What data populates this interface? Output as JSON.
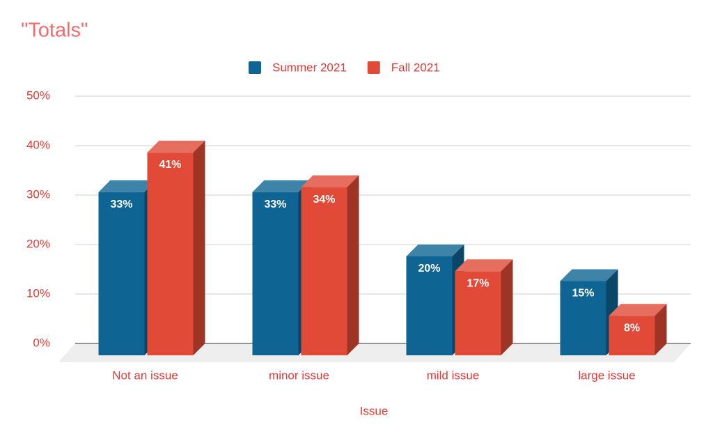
{
  "chart_data": {
    "type": "bar3d",
    "title": "\"Totals\"",
    "x_label": "Issue",
    "categories": [
      "Not an issue",
      "minor issue",
      "mild issue",
      "large issue"
    ],
    "series": [
      {
        "name": "Summer 2021",
        "color": "#0e6492",
        "values": [
          33,
          33,
          20,
          15
        ],
        "value_labels": [
          "33%",
          "33%",
          "20%",
          "15%"
        ]
      },
      {
        "name": "Fall 2021",
        "color": "#e04a36",
        "values": [
          41,
          34,
          17,
          8
        ],
        "value_labels": [
          "41%",
          "34%",
          "17%",
          "8%"
        ]
      }
    ],
    "ylim": [
      0,
      50
    ],
    "yticks": [
      {
        "value": 0,
        "label": "0%"
      },
      {
        "value": 10,
        "label": "10%"
      },
      {
        "value": 20,
        "label": "20%"
      },
      {
        "value": 30,
        "label": "30%"
      },
      {
        "value": 40,
        "label": "40%"
      },
      {
        "value": 50,
        "label": "50%"
      }
    ],
    "grid": true,
    "legend": "top"
  }
}
